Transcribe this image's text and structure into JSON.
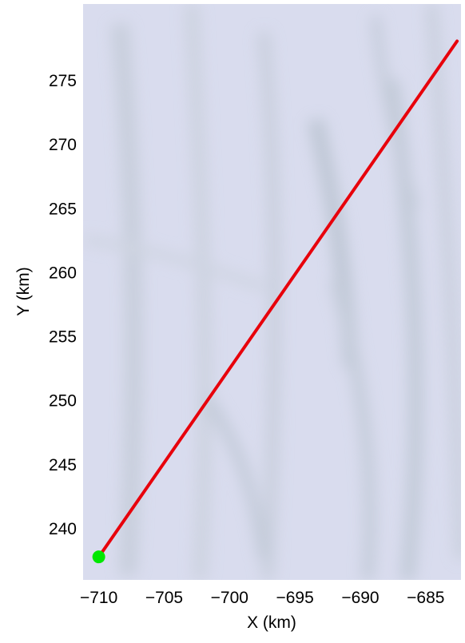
{
  "chart_data": {
    "type": "line",
    "title": "",
    "xlabel": "X (km)",
    "ylabel": "Y (km)",
    "xlim": [
      -711.2,
      -682.3
    ],
    "ylim": [
      236.0,
      281.0
    ],
    "xticks": [
      -710,
      -705,
      -700,
      -695,
      -690,
      -685
    ],
    "yticks": [
      240,
      245,
      250,
      255,
      260,
      265,
      270,
      275
    ],
    "grid": false,
    "background": "grayscale satellite imagery (pale lavender-gray surface with faint darker streaks)",
    "series": [
      {
        "name": "",
        "style": "line",
        "color": "#e8000b",
        "x": [
          -710.0,
          -682.6
        ],
        "y": [
          237.8,
          278.1
        ]
      },
      {
        "name": "",
        "style": "marker",
        "color": "#00e800",
        "x": [
          -710.0
        ],
        "y": [
          237.8
        ]
      }
    ]
  },
  "colors": {
    "background_base": "#d9dcee",
    "streak_dark": "#a9b6c0",
    "track_line": "#e8000b",
    "start_marker": "#00e800"
  }
}
